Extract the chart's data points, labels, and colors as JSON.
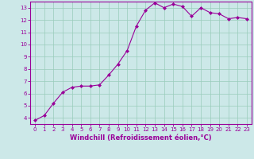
{
  "x": [
    0,
    1,
    2,
    3,
    4,
    5,
    6,
    7,
    8,
    9,
    10,
    11,
    12,
    13,
    14,
    15,
    16,
    17,
    18,
    19,
    20,
    21,
    22,
    23
  ],
  "y": [
    3.8,
    4.2,
    5.2,
    6.1,
    6.5,
    6.6,
    6.6,
    6.7,
    7.5,
    8.4,
    9.5,
    11.5,
    12.8,
    13.4,
    13.0,
    13.3,
    13.1,
    12.3,
    13.0,
    12.6,
    12.5,
    12.1,
    12.2,
    12.1
  ],
  "line_color": "#990099",
  "marker": "D",
  "marker_size": 2.0,
  "bg_color": "#cce8e8",
  "grid_color": "#99ccbb",
  "xlabel": "Windchill (Refroidissement éolien,°C)",
  "xlabel_color": "#990099",
  "tick_color": "#990099",
  "spine_color": "#990099",
  "xlim": [
    -0.5,
    23.5
  ],
  "ylim": [
    3.5,
    13.5
  ],
  "yticks": [
    4,
    5,
    6,
    7,
    8,
    9,
    10,
    11,
    12,
    13
  ],
  "xticks": [
    0,
    1,
    2,
    3,
    4,
    5,
    6,
    7,
    8,
    9,
    10,
    11,
    12,
    13,
    14,
    15,
    16,
    17,
    18,
    19,
    20,
    21,
    22,
    23
  ],
  "tick_fontsize": 5.0,
  "xlabel_fontsize": 6.0,
  "linewidth": 0.8
}
